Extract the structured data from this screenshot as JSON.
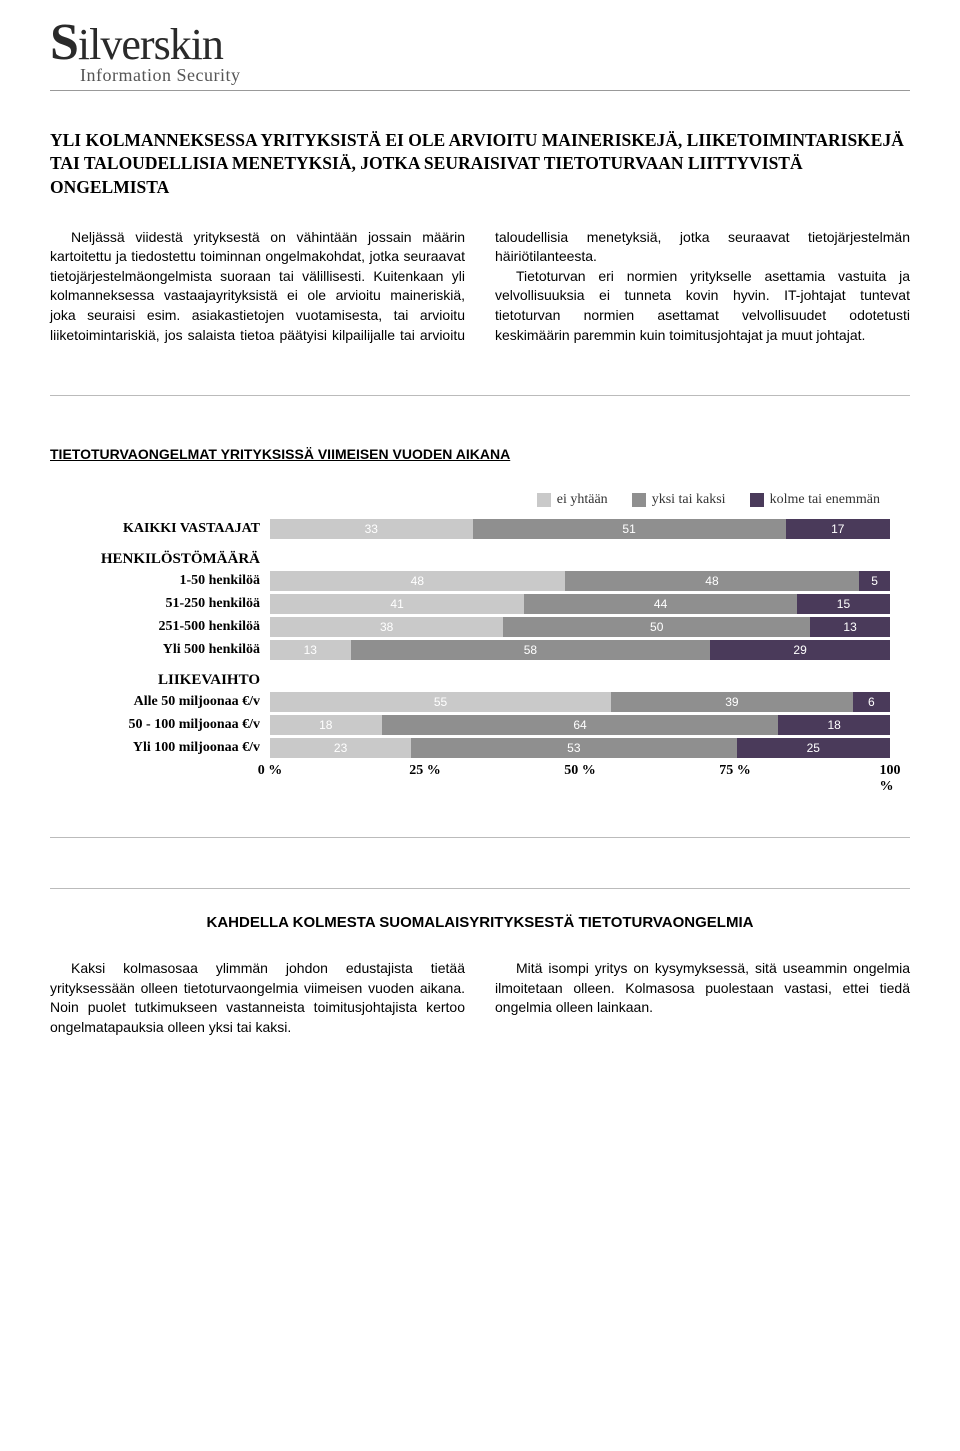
{
  "logo": {
    "main": "Silverskin",
    "sub": "Information Security"
  },
  "headline": "YLI KOLMANNEKSESSA YRITYKSISTÄ EI OLE ARVIOITU MAINERISKEJÄ, LIIKETOIMINTARISKEJÄ TAI TALOUDELLISIA MENETYKSIÄ, JOTKA SEURAISIVAT TIETOTURVAAN LIITTYVISTÄ ONGELMISTA",
  "body1": {
    "p1": "Neljässä viidestä yrityksestä on vähintään jossain määrin kartoitettu ja tiedostettu toiminnan ongelmakohdat, jotka seuraavat tietojärjestelmäongelmista suoraan tai välillisesti. Kuitenkaan yli kolmanneksessa vastaajayrityksistä ei ole arvioitu maineriskiä, joka seuraisi esim. asiakastietojen vuotamisesta, tai arvioitu liiketoimintariskiä, jos salaista tietoa päätyisi kilpailijalle tai arvioitu taloudellisia menetyksiä, jotka seuraavat tietojärjestelmän häiriötilanteesta.",
    "p2": "Tietoturvan eri normien yritykselle asettamia vastuita ja velvollisuuksia ei tunneta kovin hyvin. IT-johtajat tuntevat tietoturvan normien asettamat velvollisuudet odotetusti keskimäärin paremmin kuin toimitusjohtajat ja muut johtajat."
  },
  "chart": {
    "title": "TIETOTURVAONGELMAT YRITYKSISSÄ VIIMEISEN VUODEN AIKANA",
    "legend": [
      {
        "label": "ei yhtään",
        "color": "#c9c9c9"
      },
      {
        "label": "yksi tai kaksi",
        "color": "#8f8f8f"
      },
      {
        "label": "kolme tai enemmän",
        "color": "#4a3a5a"
      }
    ],
    "colors": {
      "seg1": "#c9c9c9",
      "seg2": "#8f8f8f",
      "seg3": "#4a3a5a"
    },
    "row_all": {
      "label": "KAIKKI VASTAAJAT",
      "v": [
        33,
        51,
        17
      ]
    },
    "group1_label": "HENKILÖSTÖMÄÄRÄ",
    "rows_g1": [
      {
        "label": "1-50 henkilöä",
        "v": [
          48,
          48,
          5
        ]
      },
      {
        "label": "51-250 henkilöä",
        "v": [
          41,
          44,
          15
        ]
      },
      {
        "label": "251-500 henkilöä",
        "v": [
          38,
          50,
          13
        ]
      },
      {
        "label": "Yli 500 henkilöä",
        "v": [
          13,
          58,
          29
        ]
      }
    ],
    "group2_label": "LIIKEVAIHTO",
    "rows_g2": [
      {
        "label": "Alle 50 miljoonaa €/v",
        "v": [
          55,
          39,
          6
        ]
      },
      {
        "label": "50 - 100 miljoonaa €/v",
        "v": [
          18,
          64,
          18
        ]
      },
      {
        "label": "Yli 100 miljoonaa €/v",
        "v": [
          23,
          53,
          25
        ]
      }
    ],
    "axis": [
      "0 %",
      "25 %",
      "50 %",
      "75 %",
      "100 %"
    ]
  },
  "sub_headline": "KAHDELLA KOLMESTA SUOMALAISYRITYKSESTÄ TIETOTURVAONGELMIA",
  "body2": {
    "p1": "Kaksi kolmasosaa ylimmän johdon edustajista tietää yrityksessään olleen tietoturvaongelmia viimeisen vuoden aikana. Noin puolet tutkimukseen vastanneista toimitusjohtajista kertoo ongelmatapauksia olleen yksi tai kaksi.",
    "p2": "Mitä isompi yritys on kysymyksessä, sitä useammin ongelmia ilmoitetaan olleen. Kolmasosa puolestaan vastasi, ettei tiedä ongelmia olleen lainkaan."
  }
}
